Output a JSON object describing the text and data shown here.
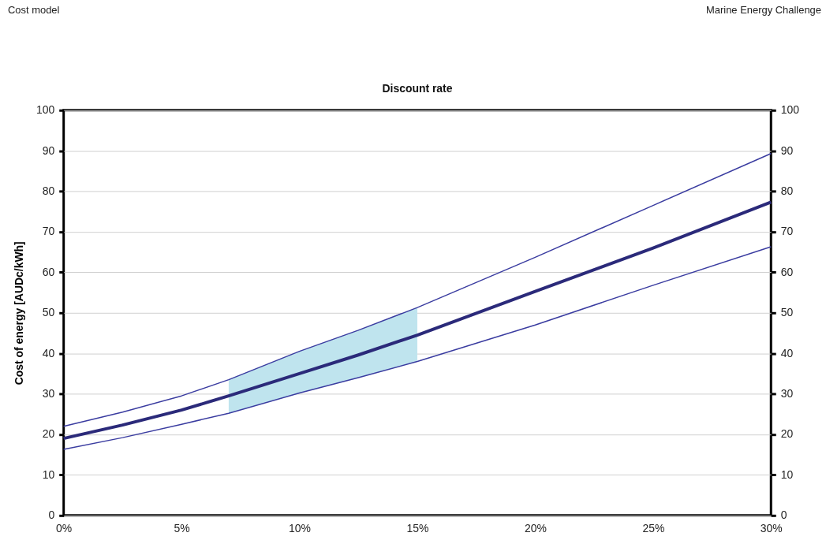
{
  "chart_data": {
    "type": "line",
    "title": "Discount rate",
    "ylabel": "Cost of energy [AUDc/kWh]",
    "annotations": [
      "Cost model",
      "Marine Energy Challenge"
    ],
    "x": [
      0,
      2.5,
      5,
      7,
      10,
      12.5,
      15,
      20,
      25,
      30
    ],
    "series": [
      {
        "color": "#3a3ca0",
        "values": [
          22,
          25.5,
          29.5,
          33.5,
          40.5,
          45.7,
          51.3,
          63.7,
          76.5,
          89.3
        ]
      },
      {
        "color": "#2b2a7a",
        "values": [
          19,
          22.3,
          26,
          29.5,
          35,
          39.6,
          44.5,
          55.3,
          66,
          77.3
        ],
        "lower": [
          null,
          null,
          null,
          25.2,
          30.2,
          34,
          38,
          null,
          null,
          null
        ],
        "upper": [
          null,
          null,
          null,
          33.5,
          40.5,
          45.7,
          51.3,
          null,
          null,
          null
        ]
      },
      {
        "color": "#3a3ca0",
        "values": [
          16.3,
          19.2,
          22.5,
          25.2,
          30.2,
          34,
          38,
          47,
          56.8,
          66.3
        ]
      }
    ],
    "xlim": [
      0,
      30
    ],
    "xticks": [
      {
        "value": 0,
        "label": "0%"
      },
      {
        "value": 5,
        "label": "5%"
      },
      {
        "value": 10,
        "label": "10%"
      },
      {
        "value": 15,
        "label": "15%"
      },
      {
        "value": 20,
        "label": "20%"
      },
      {
        "value": 25,
        "label": "25%"
      },
      {
        "value": 30,
        "label": "30%"
      }
    ],
    "ylim": [
      0,
      100
    ],
    "yticks": [
      0,
      10,
      20,
      30,
      40,
      50,
      60,
      70,
      80,
      90,
      100
    ],
    "y2lim": [
      0,
      100
    ],
    "y2ticks": [
      0,
      10,
      20,
      30,
      40,
      50,
      60,
      70,
      80,
      90,
      100
    ],
    "grid": "y",
    "marker": "none",
    "line_style": "solid"
  }
}
